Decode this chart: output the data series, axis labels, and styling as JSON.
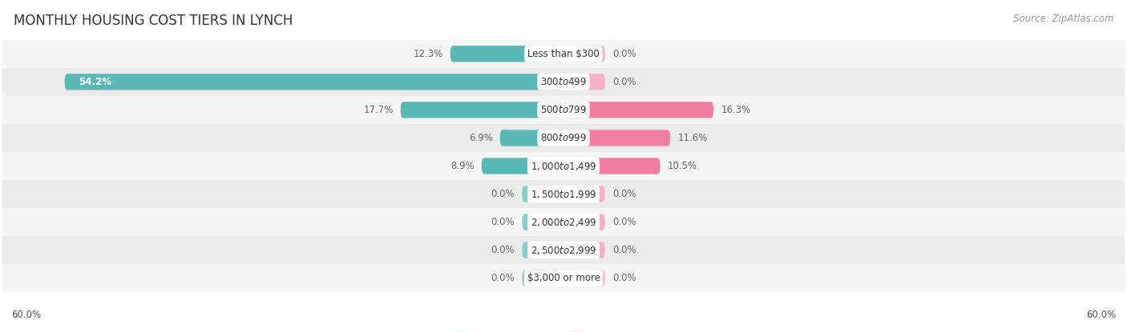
{
  "title": "MONTHLY HOUSING COST TIERS IN LYNCH",
  "source": "Source: ZipAtlas.com",
  "categories": [
    "Less than $300",
    "$300 to $499",
    "$500 to $799",
    "$800 to $999",
    "$1,000 to $1,499",
    "$1,500 to $1,999",
    "$2,000 to $2,499",
    "$2,500 to $2,999",
    "$3,000 or more"
  ],
  "owner_values": [
    12.3,
    54.2,
    17.7,
    6.9,
    8.9,
    0.0,
    0.0,
    0.0,
    0.0
  ],
  "renter_values": [
    0.0,
    0.0,
    16.3,
    11.6,
    10.5,
    0.0,
    0.0,
    0.0,
    0.0
  ],
  "owner_color": "#5ab9b5",
  "renter_color": "#f07fa0",
  "owner_color_light": "#85ceca",
  "renter_color_light": "#f5b0c5",
  "axis_limit": 60.0,
  "axis_label_left": "60.0%",
  "axis_label_right": "60.0%",
  "row_bg_odd": "#f5f5f5",
  "row_bg_even": "#ebebeb",
  "label_color_dark": "#666666",
  "label_color_white": "#ffffff",
  "title_fontsize": 12,
  "source_fontsize": 8.5,
  "bar_label_fontsize": 8.5,
  "category_fontsize": 8.5,
  "legend_fontsize": 9.5,
  "axis_tick_fontsize": 8.5,
  "background_color": "#ffffff",
  "placeholder_size": 4.5
}
